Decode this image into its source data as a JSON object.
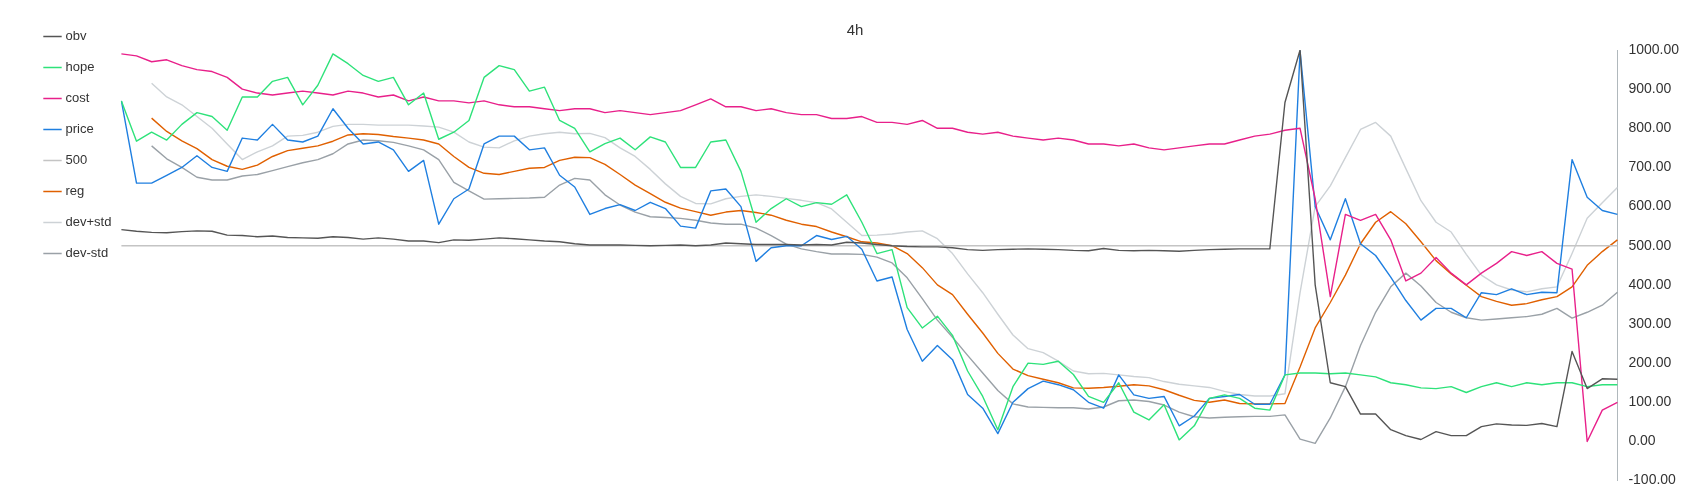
{
  "chart_data": {
    "type": "line",
    "title": "4h",
    "categories": [
      null,
      null,
      null,
      null,
      null,
      null,
      null,
      null,
      null,
      null,
      null,
      null,
      null,
      null,
      null,
      null,
      null,
      null,
      null,
      null,
      null,
      null,
      null,
      null,
      null,
      null,
      null,
      null,
      null,
      null,
      null,
      null,
      null,
      null,
      null,
      null,
      null,
      null,
      null,
      null,
      null,
      null,
      null,
      null,
      null,
      null,
      null,
      null,
      null,
      null,
      null,
      null,
      null,
      null,
      null,
      null,
      null,
      null,
      null,
      null,
      null,
      null,
      null,
      null,
      null,
      null,
      null,
      null,
      null,
      null,
      null,
      null,
      null,
      null,
      null,
      null,
      null,
      null,
      null,
      null,
      null,
      null,
      null,
      null,
      null,
      null,
      null,
      null,
      null,
      null,
      null,
      null,
      null,
      null,
      null,
      null,
      null,
      null,
      null,
      null
    ],
    "series": [
      {
        "name": "obv",
        "color": "#555555",
        "values": [
          541,
          537,
          534,
          533,
          536,
          538,
          537,
          527,
          526,
          523,
          525,
          521,
          520,
          519,
          523,
          521,
          517,
          520,
          517,
          512,
          512,
          508,
          515,
          514,
          517,
          520,
          518,
          515,
          512,
          510,
          505,
          502,
          502,
          502,
          501,
          500,
          501,
          502,
          500,
          502,
          507,
          505,
          503,
          503,
          503,
          502,
          503,
          502,
          509,
          507,
          503,
          500,
          498,
          497,
          497,
          495,
          490,
          488,
          490,
          491,
          492,
          491,
          490,
          488,
          487,
          493,
          488,
          487,
          488,
          487,
          486,
          488,
          490,
          491,
          492,
          492,
          492,
          866,
          1000,
          400,
          150,
          140,
          70,
          70,
          30,
          15,
          5,
          25,
          15,
          15,
          38,
          45,
          42,
          41,
          46,
          38,
          230,
          135,
          160,
          159
        ]
      },
      {
        "name": "hope",
        "color": "#2ee27a",
        "values": [
          870,
          767,
          790,
          770,
          810,
          840,
          830,
          795,
          880,
          880,
          920,
          930,
          860,
          910,
          990,
          965,
          935,
          920,
          930,
          860,
          890,
          772,
          790,
          820,
          930,
          960,
          950,
          895,
          905,
          820,
          800,
          740,
          761,
          775,
          745,
          778,
          765,
          700,
          700,
          765,
          770,
          690,
          560,
          595,
          620,
          600,
          610,
          606,
          630,
          560,
          480,
          490,
          342,
          290,
          320,
          271,
          180,
          115,
          30,
          140,
          200,
          197,
          205,
          171,
          115,
          100,
          150,
          75,
          55,
          94,
          4,
          40,
          110,
          119,
          110,
          85,
          80,
          170,
          175,
          175,
          173,
          175,
          170,
          165,
          150,
          145,
          137,
          135,
          140,
          125,
          140,
          150,
          140,
          150,
          145,
          150,
          150,
          140,
          145,
          145
        ]
      },
      {
        "name": "cost",
        "color": "#e8208a",
        "values": [
          990,
          985,
          970,
          975,
          960,
          950,
          945,
          930,
          900,
          890,
          885,
          890,
          895,
          890,
          885,
          895,
          890,
          880,
          885,
          870,
          880,
          870,
          870,
          865,
          870,
          860,
          855,
          855,
          850,
          845,
          850,
          850,
          840,
          845,
          840,
          835,
          840,
          845,
          860,
          875,
          855,
          855,
          845,
          850,
          840,
          835,
          835,
          825,
          825,
          830,
          815,
          815,
          810,
          820,
          800,
          800,
          790,
          785,
          790,
          780,
          775,
          770,
          775,
          770,
          760,
          760,
          755,
          760,
          750,
          745,
          750,
          755,
          760,
          760,
          770,
          780,
          785,
          795,
          800,
          620,
          370,
          580,
          565,
          580,
          515,
          410,
          430,
          470,
          430,
          400,
          430,
          455,
          485,
          475,
          485,
          455,
          440,
          0,
          80,
          100
        ]
      },
      {
        "name": "price",
        "color": "#1f7fe0",
        "values": [
          870,
          660,
          660,
          680,
          700,
          730,
          700,
          690,
          775,
          770,
          810,
          770,
          765,
          780,
          850,
          800,
          760,
          765,
          745,
          690,
          718,
          555,
          620,
          645,
          760,
          780,
          780,
          745,
          750,
          680,
          650,
          580,
          595,
          605,
          590,
          611,
          595,
          550,
          545,
          640,
          645,
          600,
          460,
          495,
          500,
          500,
          526,
          516,
          524,
          491,
          410,
          420,
          286,
          205,
          245,
          209,
          120,
          85,
          20,
          100,
          135,
          154,
          145,
          132,
          100,
          85,
          170,
          119,
          110,
          115,
          40,
          65,
          110,
          115,
          120,
          95,
          95,
          170,
          997,
          600,
          515,
          620,
          505,
          475,
          420,
          360,
          310,
          340,
          340,
          316,
          380,
          375,
          390,
          375,
          381,
          380,
          720,
          624,
          590,
          580
        ]
      },
      {
        "name": "500",
        "color": "#c4c4c4",
        "values": [
          500,
          500,
          500,
          500,
          500,
          500,
          500,
          500,
          500,
          500,
          500,
          500,
          500,
          500,
          500,
          500,
          500,
          500,
          500,
          500,
          500,
          500,
          500,
          500,
          500,
          500,
          500,
          500,
          500,
          500,
          500,
          500,
          500,
          500,
          500,
          500,
          500,
          500,
          500,
          500,
          500,
          500,
          500,
          500,
          500,
          500,
          500,
          500,
          500,
          500,
          500,
          500,
          500,
          500,
          500,
          500,
          500,
          500,
          500,
          500,
          500,
          500,
          500,
          500,
          500,
          500,
          500,
          500,
          500,
          500,
          500,
          500,
          500,
          500,
          500,
          500,
          500,
          500,
          500,
          500,
          500,
          500,
          500,
          500,
          500,
          500,
          500,
          500,
          500,
          500,
          500,
          500,
          500,
          500,
          500,
          500,
          500,
          500,
          500,
          500
        ]
      },
      {
        "name": "reg",
        "color": "#e06000",
        "values": [
          null,
          null,
          826,
          792,
          768,
          748,
          720,
          703,
          695,
          706,
          728,
          743,
          749,
          755,
          767,
          783,
          786,
          784,
          779,
          775,
          770,
          760,
          728,
          700,
          685,
          682,
          690,
          698,
          700,
          718,
          726,
          725,
          708,
          682,
          655,
          633,
          611,
          596,
          587,
          578,
          586,
          590,
          585,
          578,
          565,
          555,
          549,
          535,
          523,
          510,
          507,
          500,
          480,
          444,
          400,
          375,
          325,
          277,
          225,
          185,
          168,
          159,
          150,
          137,
          136,
          138,
          141,
          145,
          142,
          132,
          118,
          105,
          100,
          106,
          97,
          96,
          96,
          97,
          190,
          290,
          355,
          425,
          505,
          560,
          587,
          556,
          510,
          462,
          428,
          399,
          370,
          358,
          348,
          352,
          362,
          370,
          395,
          450,
          485,
          515
        ]
      },
      {
        "name": "dev+std",
        "color": "#cdd2d6",
        "values": [
          null,
          null,
          915,
          880,
          860,
          830,
          800,
          760,
          720,
          740,
          755,
          780,
          782,
          790,
          805,
          810,
          810,
          808,
          808,
          808,
          806,
          803,
          790,
          765,
          752,
          750,
          768,
          780,
          786,
          790,
          786,
          787,
          776,
          750,
          728,
          695,
          658,
          626,
          608,
          607,
          620,
          626,
          630,
          626,
          621,
          616,
          610,
          594,
          560,
          526,
          527,
          530,
          535,
          538,
          518,
          480,
          428,
          380,
          325,
          272,
          237,
          227,
          205,
          180,
          173,
          174,
          170,
          166,
          163,
          153,
          146,
          142,
          138,
          128,
          120,
          116,
          116,
          122,
          380,
          600,
          653,
          725,
          797,
          815,
          780,
          697,
          615,
          560,
          535,
          478,
          425,
          400,
          387,
          382,
          390,
          395,
          480,
          570,
          610,
          649
        ]
      },
      {
        "name": "dev-std",
        "color": "#9aa1a7",
        "values": [
          null,
          null,
          755,
          722,
          700,
          675,
          668,
          668,
          678,
          682,
          692,
          702,
          712,
          720,
          735,
          760,
          770,
          768,
          764,
          755,
          745,
          720,
          662,
          640,
          619,
          620,
          621,
          622,
          624,
          655,
          672,
          668,
          630,
          604,
          586,
          574,
          572,
          570,
          565,
          558,
          555,
          555,
          545,
          526,
          504,
          492,
          485,
          479,
          479,
          478,
          471,
          456,
          418,
          365,
          310,
          266,
          220,
          175,
          130,
          96,
          88,
          87,
          86,
          86,
          83,
          88,
          104,
          106,
          102,
          93,
          75,
          63,
          60,
          62,
          63,
          64,
          64,
          68,
          6,
          -5,
          60,
          140,
          245,
          330,
          395,
          430,
          397,
          355,
          330,
          316,
          310,
          313,
          316,
          319,
          325,
          340,
          315,
          330,
          348,
          381
        ]
      }
    ],
    "ylim": [
      -100,
      1000
    ],
    "yticks": [
      {
        "value": -100,
        "label": "-100.00"
      },
      {
        "value": 0,
        "label": "0.00"
      },
      {
        "value": 100,
        "label": "100.00"
      },
      {
        "value": 200,
        "label": "200.00"
      },
      {
        "value": 300,
        "label": "300.00"
      },
      {
        "value": 400,
        "label": "400.00"
      },
      {
        "value": 500,
        "label": "500.00"
      },
      {
        "value": 600,
        "label": "600.00"
      },
      {
        "value": 700,
        "label": "700.00"
      },
      {
        "value": 800,
        "label": "800.00"
      },
      {
        "value": 900,
        "label": "900.00"
      },
      {
        "value": 1000,
        "label": "1000.00"
      }
    ],
    "grid": false,
    "legend": "left",
    "marker": "none",
    "line_style": "solid"
  }
}
